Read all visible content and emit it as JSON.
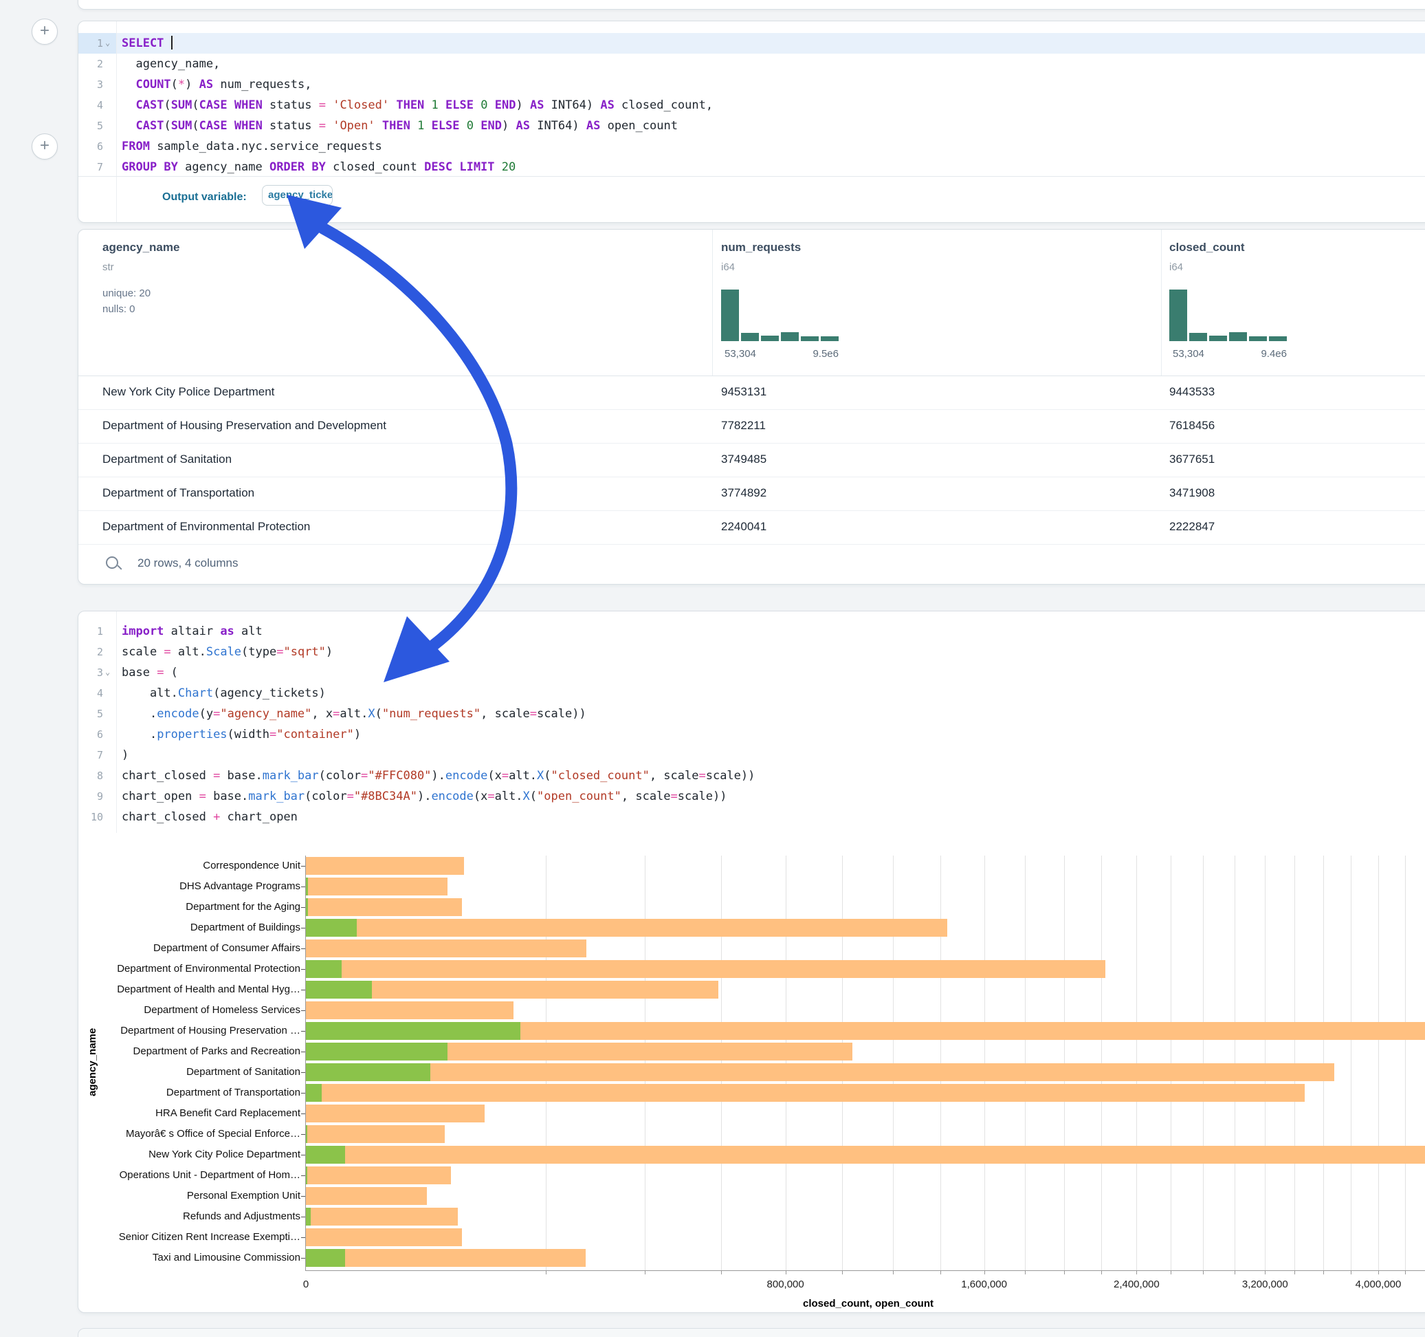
{
  "sql_cell": {
    "lines": [
      {
        "n": "1",
        "fold": true,
        "hl": true,
        "cursor": true,
        "t": [
          [
            "kw",
            "SELECT"
          ],
          [
            "pl",
            " "
          ]
        ]
      },
      {
        "n": "2",
        "t": [
          [
            "pl",
            "  agency_name,"
          ]
        ]
      },
      {
        "n": "3",
        "t": [
          [
            "pl",
            "  "
          ],
          [
            "kw",
            "COUNT"
          ],
          [
            "pl",
            "("
          ],
          [
            "op",
            "*"
          ],
          [
            "pl",
            ") "
          ],
          [
            "kw",
            "AS"
          ],
          [
            "pl",
            " num_requests,"
          ]
        ]
      },
      {
        "n": "4",
        "t": [
          [
            "pl",
            "  "
          ],
          [
            "kw",
            "CAST"
          ],
          [
            "pl",
            "("
          ],
          [
            "kw",
            "SUM"
          ],
          [
            "pl",
            "("
          ],
          [
            "kw",
            "CASE"
          ],
          [
            "pl",
            " "
          ],
          [
            "kw",
            "WHEN"
          ],
          [
            "pl",
            " status "
          ],
          [
            "op",
            "="
          ],
          [
            "pl",
            " "
          ],
          [
            "str",
            "'Closed'"
          ],
          [
            "pl",
            " "
          ],
          [
            "kw",
            "THEN"
          ],
          [
            "pl",
            " "
          ],
          [
            "num",
            "1"
          ],
          [
            "pl",
            " "
          ],
          [
            "kw",
            "ELSE"
          ],
          [
            "pl",
            " "
          ],
          [
            "num",
            "0"
          ],
          [
            "pl",
            " "
          ],
          [
            "kw",
            "END"
          ],
          [
            "pl",
            ") "
          ],
          [
            "kw",
            "AS"
          ],
          [
            "pl",
            " INT64) "
          ],
          [
            "kw",
            "AS"
          ],
          [
            "pl",
            " closed_count,"
          ]
        ]
      },
      {
        "n": "5",
        "t": [
          [
            "pl",
            "  "
          ],
          [
            "kw",
            "CAST"
          ],
          [
            "pl",
            "("
          ],
          [
            "kw",
            "SUM"
          ],
          [
            "pl",
            "("
          ],
          [
            "kw",
            "CASE"
          ],
          [
            "pl",
            " "
          ],
          [
            "kw",
            "WHEN"
          ],
          [
            "pl",
            " status "
          ],
          [
            "op",
            "="
          ],
          [
            "pl",
            " "
          ],
          [
            "str",
            "'Open'"
          ],
          [
            "pl",
            " "
          ],
          [
            "kw",
            "THEN"
          ],
          [
            "pl",
            " "
          ],
          [
            "num",
            "1"
          ],
          [
            "pl",
            " "
          ],
          [
            "kw",
            "ELSE"
          ],
          [
            "pl",
            " "
          ],
          [
            "num",
            "0"
          ],
          [
            "pl",
            " "
          ],
          [
            "kw",
            "END"
          ],
          [
            "pl",
            ") "
          ],
          [
            "kw",
            "AS"
          ],
          [
            "pl",
            " INT64) "
          ],
          [
            "kw",
            "AS"
          ],
          [
            "pl",
            " open_count"
          ]
        ]
      },
      {
        "n": "6",
        "t": [
          [
            "kw",
            "FROM"
          ],
          [
            "pl",
            " sample_data.nyc.service_requests"
          ]
        ]
      },
      {
        "n": "7",
        "t": [
          [
            "kw",
            "GROUP BY"
          ],
          [
            "pl",
            " agency_name "
          ],
          [
            "kw",
            "ORDER BY"
          ],
          [
            "pl",
            " closed_count "
          ],
          [
            "kw",
            "DESC"
          ],
          [
            "pl",
            " "
          ],
          [
            "kw",
            "LIMIT"
          ],
          [
            "pl",
            " "
          ],
          [
            "num",
            "20"
          ]
        ]
      }
    ],
    "output_variable_label": "Output variable:",
    "output_variable": "agency_tickets"
  },
  "table": {
    "columns": [
      {
        "name": "agency_name",
        "type": "str",
        "stats": [
          "unique: 20",
          "nulls: 0"
        ]
      },
      {
        "name": "num_requests",
        "type": "i64",
        "hist": [
          1,
          0.16,
          0.11,
          0.17,
          0.09,
          0.09
        ],
        "hist_min": "53,304",
        "hist_max": "9.5e6"
      },
      {
        "name": "closed_count",
        "type": "i64",
        "hist": [
          1,
          0.16,
          0.11,
          0.17,
          0.09,
          0.09
        ],
        "hist_min": "53,304",
        "hist_max": "9.4e6"
      }
    ],
    "rows": [
      [
        "New York City Police Department",
        "9453131",
        "9443533"
      ],
      [
        "Department of Housing Preservation and Development",
        "7782211",
        "7618456"
      ],
      [
        "Department of Sanitation",
        "3749485",
        "3677651"
      ],
      [
        "Department of Transportation",
        "3774892",
        "3471908"
      ],
      [
        "Department of Environmental Protection",
        "2240041",
        "2222847"
      ]
    ],
    "footer": "20 rows, 4 columns"
  },
  "python_cell": {
    "lines": [
      {
        "n": "1",
        "t": [
          [
            "kw",
            "import"
          ],
          [
            "pl",
            " altair "
          ],
          [
            "kw",
            "as"
          ],
          [
            "pl",
            " alt"
          ]
        ]
      },
      {
        "n": "2",
        "t": [
          [
            "pl",
            "scale "
          ],
          [
            "op",
            "="
          ],
          [
            "pl",
            " alt."
          ],
          [
            "fn",
            "Scale"
          ],
          [
            "pl",
            "(type"
          ],
          [
            "op",
            "="
          ],
          [
            "str",
            "\"sqrt\""
          ],
          [
            "pl",
            ")"
          ]
        ]
      },
      {
        "n": "3",
        "fold": true,
        "t": [
          [
            "pl",
            "base "
          ],
          [
            "op",
            "="
          ],
          [
            "pl",
            " ("
          ]
        ]
      },
      {
        "n": "4",
        "t": [
          [
            "pl",
            "    alt."
          ],
          [
            "fn",
            "Chart"
          ],
          [
            "pl",
            "(agency_tickets)"
          ]
        ]
      },
      {
        "n": "5",
        "t": [
          [
            "pl",
            "    ."
          ],
          [
            "fn",
            "encode"
          ],
          [
            "pl",
            "(y"
          ],
          [
            "op",
            "="
          ],
          [
            "str",
            "\"agency_name\""
          ],
          [
            "pl",
            ", x"
          ],
          [
            "op",
            "="
          ],
          [
            "pl",
            "alt."
          ],
          [
            "fn",
            "X"
          ],
          [
            "pl",
            "("
          ],
          [
            "str",
            "\"num_requests\""
          ],
          [
            "pl",
            ", scale"
          ],
          [
            "op",
            "="
          ],
          [
            "pl",
            "scale))"
          ]
        ]
      },
      {
        "n": "6",
        "t": [
          [
            "pl",
            "    ."
          ],
          [
            "fn",
            "properties"
          ],
          [
            "pl",
            "(width"
          ],
          [
            "op",
            "="
          ],
          [
            "str",
            "\"container\""
          ],
          [
            "pl",
            ")"
          ]
        ]
      },
      {
        "n": "7",
        "t": [
          [
            "pl",
            ")"
          ]
        ]
      },
      {
        "n": "8",
        "t": [
          [
            "pl",
            "chart_closed "
          ],
          [
            "op",
            "="
          ],
          [
            "pl",
            " base."
          ],
          [
            "fn",
            "mark_bar"
          ],
          [
            "pl",
            "(color"
          ],
          [
            "op",
            "="
          ],
          [
            "str",
            "\"#FFC080\""
          ],
          [
            "pl",
            ")."
          ],
          [
            "fn",
            "encode"
          ],
          [
            "pl",
            "(x"
          ],
          [
            "op",
            "="
          ],
          [
            "pl",
            "alt."
          ],
          [
            "fn",
            "X"
          ],
          [
            "pl",
            "("
          ],
          [
            "str",
            "\"closed_count\""
          ],
          [
            "pl",
            ", scale"
          ],
          [
            "op",
            "="
          ],
          [
            "pl",
            "scale))"
          ]
        ]
      },
      {
        "n": "9",
        "t": [
          [
            "pl",
            "chart_open "
          ],
          [
            "op",
            "="
          ],
          [
            "pl",
            " base."
          ],
          [
            "fn",
            "mark_bar"
          ],
          [
            "pl",
            "(color"
          ],
          [
            "op",
            "="
          ],
          [
            "str",
            "\"#8BC34A\""
          ],
          [
            "pl",
            ")."
          ],
          [
            "fn",
            "encode"
          ],
          [
            "pl",
            "(x"
          ],
          [
            "op",
            "="
          ],
          [
            "pl",
            "alt."
          ],
          [
            "fn",
            "X"
          ],
          [
            "pl",
            "("
          ],
          [
            "str",
            "\"open_count\""
          ],
          [
            "pl",
            ", scale"
          ],
          [
            "op",
            "="
          ],
          [
            "pl",
            "scale))"
          ]
        ]
      },
      {
        "n": "10",
        "t": [
          [
            "pl",
            "chart_closed "
          ],
          [
            "op",
            "+"
          ],
          [
            "pl",
            " chart_open"
          ]
        ]
      }
    ]
  },
  "chart_data": {
    "type": "bar",
    "orientation": "horizontal",
    "x_scale": "sqrt",
    "xlabel": "closed_count, open_count",
    "ylabel": "agency_name",
    "grid": true,
    "categories": [
      "Correspondence Unit",
      "DHS Advantage Programs",
      "Department for the Aging",
      "Department of Buildings",
      "Department of Consumer Affairs",
      "Department of Environmental Protection",
      "Department of Health and Mental Hyg…",
      "Department of Homeless Services",
      "Department of Housing Preservation …",
      "Department of Parks and Recreation",
      "Department of Sanitation",
      "Department of Transportation",
      "HRA Benefit Card Replacement",
      "Mayorâ€ s Office of Special Enforce…",
      "New York City Police Department",
      "Operations Unit - Department of Hom…",
      "Personal Exemption Unit",
      "Refunds and Adjustments",
      "Senior Citizen Rent Increase Exempti…",
      "Taxi and Limousine Commission"
    ],
    "series": [
      {
        "name": "closed_count",
        "color": "#FFC080",
        "values": [
          87000,
          70000,
          85000,
          1430000,
          273000,
          2222847,
          591000,
          150000,
          7618456,
          1040000,
          3677651,
          3471908,
          111000,
          67000,
          9443533,
          73000,
          51000,
          80000,
          85000,
          272000
        ]
      },
      {
        "name": "open_count",
        "color": "#8BC34A",
        "values": [
          0,
          20,
          20,
          9000,
          0,
          4400,
          15000,
          0,
          160000,
          70000,
          54000,
          900,
          0,
          10,
          5400,
          10,
          0,
          90,
          0,
          5400
        ]
      }
    ],
    "x_ticks": [
      {
        "v": 0,
        "label": "0"
      },
      {
        "v": 800000,
        "label": "800,000"
      },
      {
        "v": 1600000,
        "label": "1,600,000"
      },
      {
        "v": 2400000,
        "label": "2,400,000"
      },
      {
        "v": 3200000,
        "label": "3,200,000"
      },
      {
        "v": 4000000,
        "label": "4,000,000"
      }
    ],
    "grid_step": 200000,
    "grid_max": 4400000
  },
  "annotation": {
    "arrow_color": "#2C58DE"
  }
}
